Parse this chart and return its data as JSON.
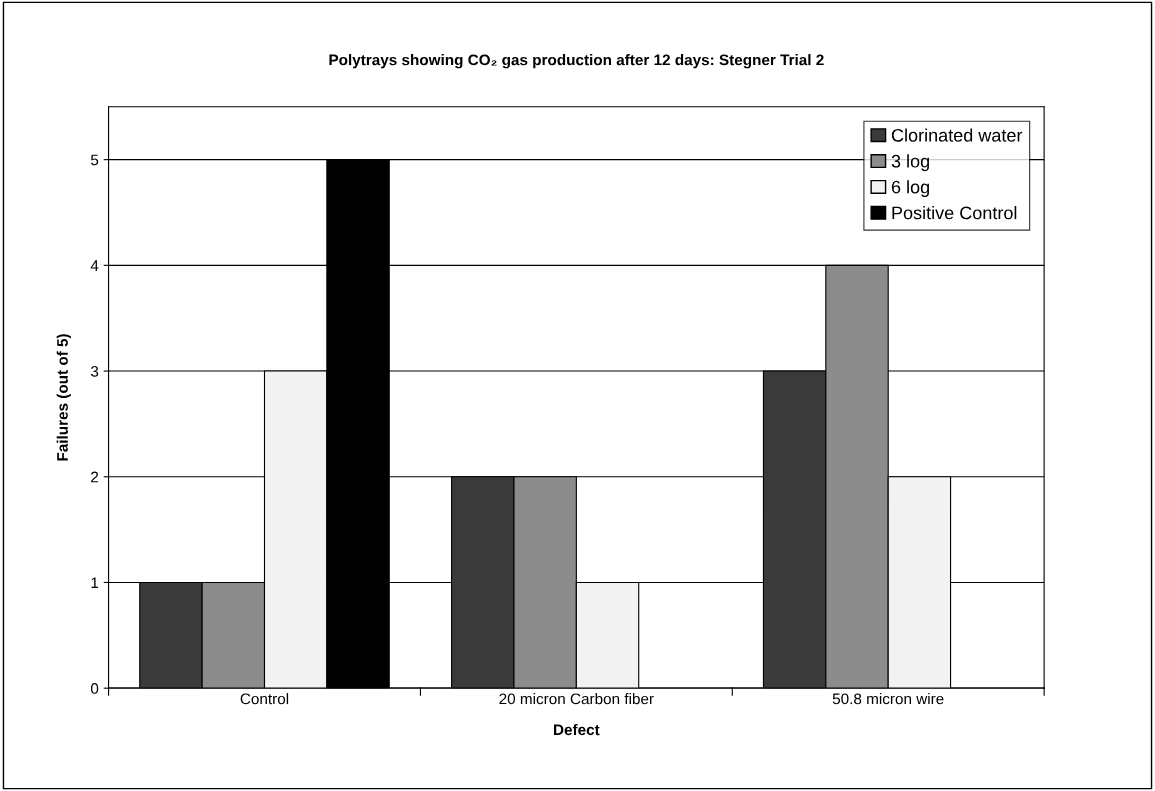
{
  "chart_data": {
    "type": "bar",
    "title": "Polytrays showing CO₂ gas production after 12 days: Stegner Trial 2",
    "xlabel": "Defect",
    "ylabel": "Failures (out of 5)",
    "categories": [
      "Control",
      "20 micron Carbon fiber",
      "50.8 micron wire"
    ],
    "series": [
      {
        "name": "Clorinated water",
        "color": "#3a3a3a",
        "values": [
          1,
          2,
          3
        ]
      },
      {
        "name": "3 log",
        "color": "#8c8c8c",
        "values": [
          1,
          2,
          4
        ]
      },
      {
        "name": "6 log",
        "color": "#f2f2f2",
        "values": [
          3,
          1,
          2
        ]
      },
      {
        "name": "Positive Control",
        "color": "#000000",
        "values": [
          5,
          null,
          null
        ]
      }
    ],
    "ylim": [
      0,
      5.5
    ],
    "yticks": [
      0,
      1,
      2,
      3,
      4,
      5
    ],
    "grid": "y",
    "legend": "top right"
  }
}
